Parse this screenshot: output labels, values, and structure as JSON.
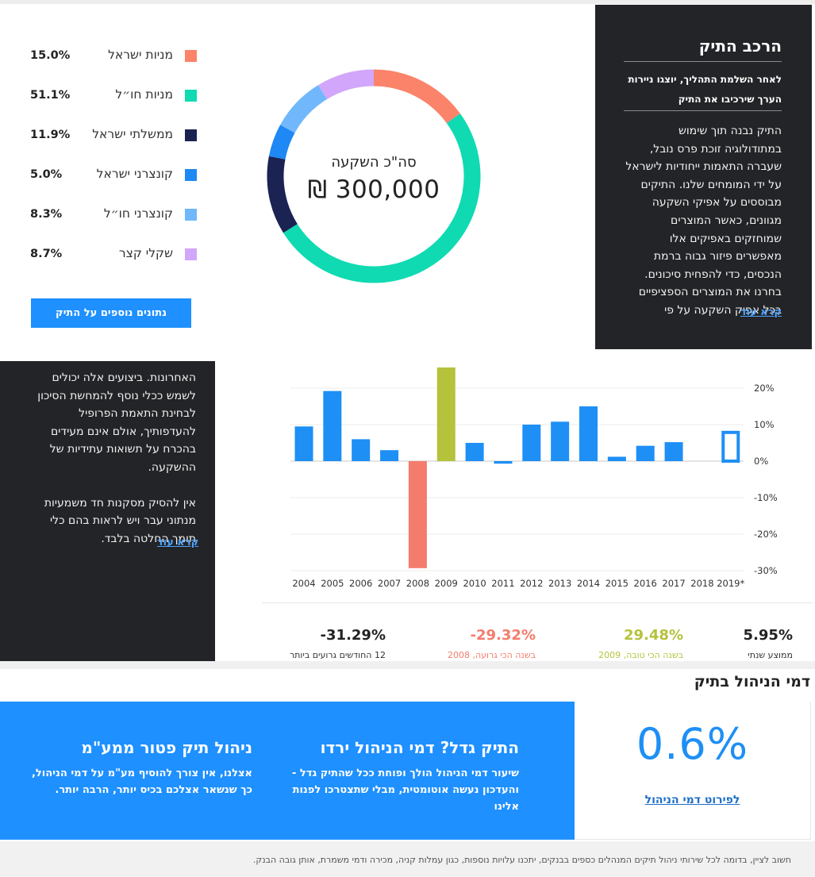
{
  "composition": {
    "legend": [
      {
        "label": "מניות ישראל",
        "pct": "15.0%",
        "color": "#fa8369"
      },
      {
        "label": "מניות חו״ל",
        "pct": "51.1%",
        "color": "#10dab2"
      },
      {
        "label": "ממשלתי ישראל",
        "pct": "11.9%",
        "color": "#1a2352"
      },
      {
        "label": "קונצרני ישראל",
        "pct": "5.0%",
        "color": "#1e88f5"
      },
      {
        "label": "קונצרני חו״ל",
        "pct": "8.3%",
        "color": "#70b8fb"
      },
      {
        "label": "שקלי קצר",
        "pct": "8.7%",
        "color": "#d1a6fb"
      }
    ],
    "more_button": "נתונים נוספים על התיק",
    "donut_title": "סה\"כ השקעה",
    "donut_value": "300,000 ₪",
    "panel": {
      "title": "הרכב התיק",
      "subtitle": "לאחר השלמת התהליך, יוצגו ניירות הערך שירכיבו את התיק",
      "body": "התיק נבנה תוך שימוש במתודולוגיה זוכת פרס נובל, שעברה התאמות ייחודיות לישראל על ידי המומחים שלנו. התיקים מבוססים על אפיקי השקעה מגוונים, כאשר המוצרים שמוחזקים באפיקים אלו מאפשרים פיזור גבוה ברמת הנכסים, כדי להפחית סיכונים. בחרנו את המוצרים הספציפיים בכל אפיק השקעה על פי",
      "read_more": "קרא עוד"
    }
  },
  "performance": {
    "panel": {
      "para1": "האחרונות. ביצועים אלה יכולים לשמש ככלי נוסף להמחשת הסיכון לבחינת התאמת הפרופיל להעדפותיך, אולם אינם מעידים בהכרח על תשואות עתידיות של ההשקעה.",
      "para2": "אין להסיק מסקנות חד משמעיות מנתוני עבר ויש לראות בהם כלי תומך החלטה בלבד.",
      "read_more": "קרא עוד"
    },
    "stats": [
      {
        "value": "5.95%",
        "label": "ממוצע שנתי",
        "color": "#222222",
        "label_color": "#333333"
      },
      {
        "value": "29.48%",
        "label": "בשנה הכי טובה, 2009",
        "color": "#b5c23c",
        "label_color": "#b5c23c"
      },
      {
        "value": "-29.32%",
        "label": "בשנה הכי גרועה, 2008",
        "color": "#f47c6c",
        "label_color": "#f47c6c"
      },
      {
        "value": "-31.29%",
        "label": "12 החודשים גרועים ביותר",
        "color": "#222222",
        "label_color": "#333333"
      }
    ]
  },
  "chart_data": {
    "type": "bar",
    "categories": [
      "2004",
      "2005",
      "2006",
      "2007",
      "2008",
      "2009",
      "2010",
      "2011",
      "2012",
      "2013",
      "2014",
      "2015",
      "2016",
      "2017",
      "2018",
      "2019*"
    ],
    "values": [
      9.5,
      19.2,
      6.0,
      3.0,
      -29.32,
      29.48,
      5.0,
      -0.7,
      10.0,
      10.8,
      15.0,
      1.2,
      4.2,
      5.2,
      null,
      8.3
    ],
    "colors": [
      "#1e8ff5",
      "#1e8ff5",
      "#1e8ff5",
      "#1e8ff5",
      "#f47c6c",
      "#b5c23c",
      "#1e8ff5",
      "#1e8ff5",
      "#1e8ff5",
      "#1e8ff5",
      "#1e8ff5",
      "#1e8ff5",
      "#1e8ff5",
      "#1e8ff5",
      "#1e8ff5",
      "outline"
    ],
    "yticks": [
      "20%",
      "10%",
      "0%",
      "-10%",
      "-20%",
      "-30%"
    ],
    "ytick_values": [
      20,
      10,
      0,
      -10,
      -20,
      -30
    ],
    "ylim": [
      -30,
      25
    ],
    "grid": true
  },
  "fees": {
    "title": "דמי הניהול בתיק",
    "percent": "0.6%",
    "link": "לפירוט דמי הניהול",
    "block1_title": "התיק גדל? דמי הניהול ירדו",
    "block1_text": "שיעור דמי הניהול הולך ופוחת ככל שהתיק גדל - והעדכון נעשה אוטומטית, מבלי שתצטרכו לפנות אלינו",
    "block2_title": "ניהול תיק פטור ממע\"מ",
    "block2_text": "אצלנו, אין צורך להוסיף מע\"מ על דמי הניהול, כך שנשאר אצלכם בכיס יותר, הרבה יותר.",
    "disclaimer": "חשוב לציין, בדומה לכל שירותי ניהול תיקים המנהלים כספים בבנקים, יתכנו עלויות נוספות, כגון עמלות קניה, מכירה ודמי משמרת, אותן גובה הבנק."
  }
}
